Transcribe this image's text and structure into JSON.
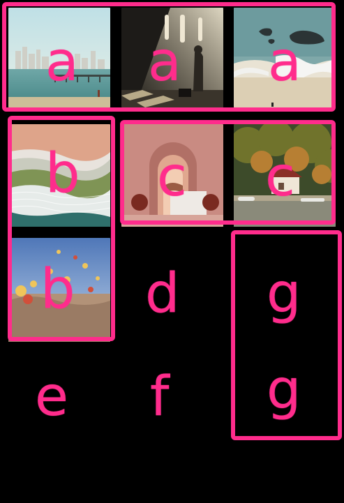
{
  "annotation_color": "#ff2c8c",
  "background_color": "#000000",
  "tiles": [
    {
      "id": "city-beach-pier",
      "scene": "city skyline, beach and pier"
    },
    {
      "id": "sunlit-room-figure",
      "scene": "person standing in sunlit dark room"
    },
    {
      "id": "coastal-rocks-waves",
      "scene": "sea waves on beach with rocks"
    },
    {
      "id": "aerial-shoreline",
      "scene": "aerial view of sand, surf and grass"
    },
    {
      "id": "pink-arches-spheres",
      "scene": "pink arches with spheres"
    },
    {
      "id": "lakeside-house-boats",
      "scene": "house among trees by a lake with boats"
    },
    {
      "id": "hot-air-balloons",
      "scene": "hot air balloons over landscape"
    }
  ],
  "labels": {
    "a1": "a",
    "a2": "a",
    "a3": "a",
    "b1": "b",
    "b2": "b",
    "c1": "c",
    "c2": "c",
    "d": "d",
    "e": "e",
    "f": "f",
    "g1": "g",
    "g2": "g"
  }
}
